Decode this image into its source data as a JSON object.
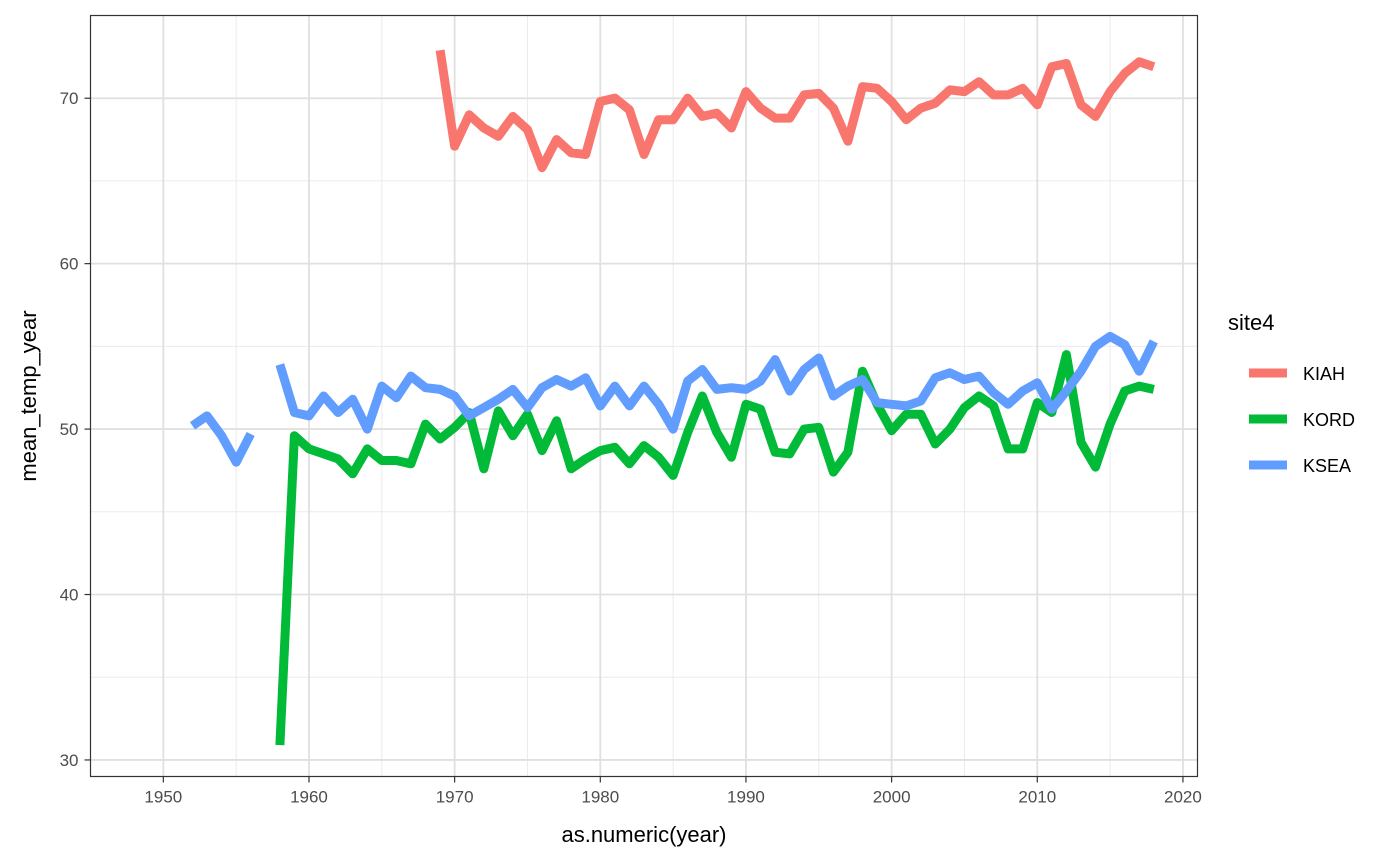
{
  "chart_data": {
    "type": "line",
    "xlabel": "as.numeric(year)",
    "ylabel": "mean_temp_year",
    "xlim": [
      1945,
      2021
    ],
    "ylim": [
      29,
      75
    ],
    "x_ticks": [
      1950,
      1960,
      1970,
      1980,
      1990,
      2000,
      2010,
      2020
    ],
    "x_minor_ticks": [
      1955,
      1965,
      1975,
      1985,
      1995,
      2005,
      2015
    ],
    "y_ticks": [
      30,
      40,
      50,
      60,
      70
    ],
    "y_minor_ticks": [
      35,
      45,
      55,
      65
    ],
    "x_tick_labels": [
      "1950",
      "1960",
      "1970",
      "1980",
      "1990",
      "2000",
      "2010",
      "2020"
    ],
    "y_tick_labels": [
      "30",
      "40",
      "50",
      "60",
      "70"
    ],
    "grid": true,
    "legend": {
      "title": "site4",
      "position": "right"
    },
    "series": [
      {
        "name": "KIAH",
        "color": "#F8766D",
        "segments": [
          {
            "x": [
              1969,
              1970,
              1971,
              1972,
              1973,
              1974,
              1975,
              1976,
              1977,
              1978,
              1979,
              1980,
              1981,
              1982,
              1983,
              1984,
              1985,
              1986,
              1987,
              1988,
              1989,
              1990,
              1991,
              1992,
              1993,
              1994,
              1995,
              1996,
              1997,
              1998,
              1999,
              2000,
              2001,
              2002,
              2003,
              2004,
              2005,
              2006,
              2007,
              2008,
              2009,
              2010,
              2011,
              2012,
              2013,
              2014,
              2015,
              2016,
              2017,
              2018
            ],
            "y": [
              72.9,
              67.1,
              69.0,
              68.2,
              67.7,
              68.9,
              68.1,
              65.8,
              67.5,
              66.7,
              66.6,
              69.8,
              70.0,
              69.3,
              66.6,
              68.7,
              68.7,
              70.0,
              68.9,
              69.1,
              68.2,
              70.4,
              69.4,
              68.8,
              68.8,
              70.2,
              70.3,
              69.4,
              67.4,
              70.7,
              70.6,
              69.8,
              68.7,
              69.4,
              69.7,
              70.5,
              70.4,
              71.0,
              70.2,
              70.2,
              70.6,
              69.6,
              71.9,
              72.1,
              69.6,
              68.9,
              70.4,
              71.5,
              72.2,
              71.9
            ]
          }
        ]
      },
      {
        "name": "KORD",
        "color": "#00BA38",
        "segments": [
          {
            "x": [
              1958,
              1959,
              1960,
              1961,
              1962,
              1963,
              1964,
              1965,
              1966,
              1967,
              1968,
              1969,
              1970,
              1971,
              1972,
              1973,
              1974,
              1975,
              1976,
              1977,
              1978,
              1979,
              1980,
              1981,
              1982,
              1983,
              1984,
              1985,
              1986,
              1987,
              1988,
              1989,
              1990,
              1991,
              1992,
              1993,
              1994,
              1995,
              1996,
              1997,
              1998,
              1999,
              2000,
              2001,
              2002,
              2003,
              2004,
              2005,
              2006,
              2007,
              2008,
              2009,
              2010,
              2011,
              2012,
              2013,
              2014,
              2015,
              2016,
              2017,
              2018
            ],
            "y": [
              30.9,
              49.6,
              48.8,
              48.5,
              48.2,
              47.3,
              48.8,
              48.1,
              48.1,
              47.9,
              50.3,
              49.4,
              50.1,
              51.0,
              47.6,
              51.1,
              49.6,
              50.9,
              48.7,
              50.5,
              47.6,
              48.2,
              48.7,
              48.9,
              47.9,
              49.0,
              48.3,
              47.2,
              49.8,
              52.0,
              49.8,
              48.3,
              51.5,
              51.2,
              48.6,
              48.5,
              50.0,
              50.1,
              47.4,
              48.6,
              53.5,
              51.5,
              49.9,
              50.9,
              50.9,
              49.1,
              50.0,
              51.3,
              52.0,
              51.4,
              48.8,
              48.8,
              51.6,
              51.0,
              54.5,
              49.2,
              47.7,
              50.3,
              52.3,
              52.6,
              52.4
            ]
          }
        ]
      },
      {
        "name": "KSEA",
        "color": "#619CFF",
        "segments": [
          {
            "x": [
              1952,
              1953,
              1954,
              1955,
              1956
            ],
            "y": [
              50.2,
              50.8,
              49.6,
              48.0,
              49.7
            ]
          },
          {
            "x": [
              1958,
              1959,
              1960,
              1961,
              1962,
              1963,
              1964,
              1965,
              1966,
              1967,
              1968,
              1969,
              1970,
              1971,
              1972,
              1973,
              1974,
              1975,
              1976,
              1977,
              1978,
              1979,
              1980,
              1981,
              1982,
              1983,
              1984,
              1985,
              1986,
              1987,
              1988,
              1989,
              1990,
              1991,
              1992,
              1993,
              1994,
              1995,
              1996,
              1997,
              1998,
              1999,
              2000,
              2001,
              2002,
              2003,
              2004,
              2005,
              2006,
              2007,
              2008,
              2009,
              2010,
              2011,
              2012,
              2013,
              2014,
              2015,
              2016,
              2017,
              2018
            ],
            "y": [
              53.9,
              51.0,
              50.8,
              52.0,
              51.0,
              51.8,
              50.0,
              52.6,
              51.9,
              53.2,
              52.5,
              52.4,
              52.0,
              50.8,
              51.3,
              51.8,
              52.4,
              51.3,
              52.5,
              53.0,
              52.6,
              53.1,
              51.4,
              52.6,
              51.4,
              52.6,
              51.5,
              50.0,
              52.9,
              53.6,
              52.4,
              52.5,
              52.4,
              52.9,
              54.2,
              52.3,
              53.6,
              54.3,
              52.0,
              52.6,
              53.0,
              51.6,
              51.5,
              51.4,
              51.7,
              53.1,
              53.4,
              53.0,
              53.2,
              52.2,
              51.5,
              52.3,
              52.8,
              51.2,
              52.3,
              53.5,
              55.0,
              55.6,
              55.1,
              53.5,
              55.3
            ]
          }
        ]
      }
    ]
  }
}
